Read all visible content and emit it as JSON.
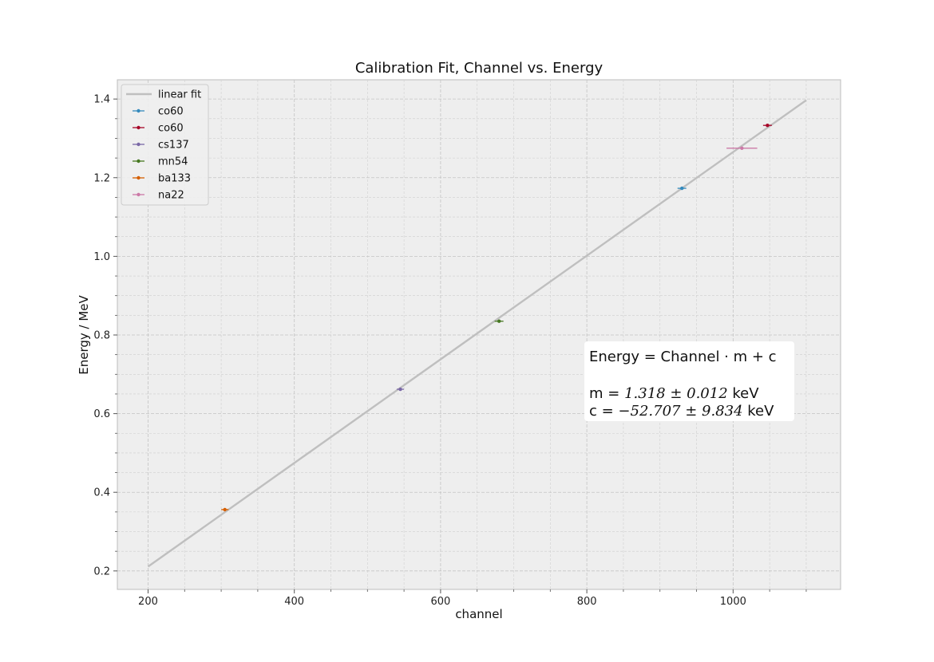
{
  "chart_data": {
    "type": "scatter",
    "title": "Calibration Fit, Channel vs. Energy",
    "xlabel": "channel",
    "ylabel": "Energy / MeV",
    "xlim": [
      158,
      1147
    ],
    "ylim": [
      0.153,
      1.449
    ],
    "x_ticks": [
      200,
      400,
      600,
      800,
      1000
    ],
    "y_ticks": [
      0.2,
      0.4,
      0.6,
      0.8,
      1.0,
      1.2,
      1.4
    ],
    "x_tick_labels": [
      "200",
      "400",
      "600",
      "800",
      "1000"
    ],
    "y_tick_labels": [
      "0.2",
      "0.4",
      "0.6",
      "0.8",
      "1.0",
      "1.2",
      "1.4"
    ],
    "grid": true,
    "legend_position": "upper-left",
    "fit_line": {
      "name": "linear fit",
      "color": "#bfbfbf",
      "x": [
        200,
        1100
      ],
      "y": [
        0.211,
        1.397
      ]
    },
    "series": [
      {
        "name": "co60",
        "color": "#348abd",
        "x": 930,
        "y": 1.173,
        "xerr": 6,
        "yerr": 0
      },
      {
        "name": "co60",
        "color": "#a60628",
        "x": 1047,
        "y": 1.333,
        "xerr": 6,
        "yerr": 0
      },
      {
        "name": "cs137",
        "color": "#7a68a6",
        "x": 545,
        "y": 0.662,
        "xerr": 5,
        "yerr": 0
      },
      {
        "name": "mn54",
        "color": "#467821",
        "x": 680,
        "y": 0.835,
        "xerr": 6,
        "yerr": 0
      },
      {
        "name": "ba133",
        "color": "#d55e00",
        "x": 305,
        "y": 0.356,
        "xerr": 5,
        "yerr": 0
      },
      {
        "name": "na22",
        "color": "#cc79a7",
        "x": 1012,
        "y": 1.275,
        "xerr": 21,
        "yerr": 0
      }
    ],
    "annotation": {
      "line1": "Energy = Channel · m + c",
      "line2_prefix": "m = ",
      "line2_math": "1.318 ± 0.012",
      "line2_suffix": " keV",
      "line3_prefix": "c  = ",
      "line3_math": "−52.707 ± 9.834",
      "line3_suffix": " keV"
    }
  }
}
